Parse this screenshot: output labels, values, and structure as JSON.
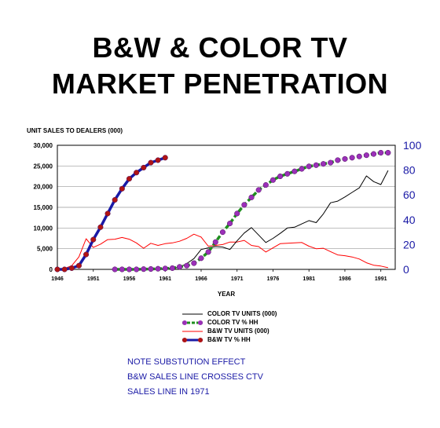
{
  "title_line1": "B&W & COLOR TV",
  "title_line2": "MARKET PENETRATION",
  "colors": {
    "color_units": "#000000",
    "color_pct_line": "#1f8f1f",
    "color_pct_marker": "#9b30b8",
    "bw_units": "#ff0000",
    "bw_pct_line": "#1a1aa6",
    "bw_pct_marker": "#b01414",
    "right_axis": "#1a1aa6",
    "note": "#1a1aa6"
  },
  "chart_data": {
    "type": "line",
    "ylabel": "UNIT SALES TO DEALERS (000)",
    "xlabel": "YEAR",
    "xlim": [
      1946,
      1993
    ],
    "ylim": [
      0,
      30000
    ],
    "y2lim": [
      0,
      100
    ],
    "grid": "horizontal",
    "x_ticks": [
      "1946",
      "1951",
      "1956",
      "1961",
      "1966",
      "1971",
      "1976",
      "1981",
      "1986",
      "1991"
    ],
    "y_ticks": [
      "0",
      "5,000",
      "10,000",
      "15,000",
      "20,000",
      "25,000",
      "30,000"
    ],
    "y2_ticks": [
      "0",
      "20",
      "40",
      "60",
      "80",
      "100"
    ],
    "legend_position": "below",
    "series": [
      {
        "name": "COLOR TV UNITS (000)",
        "axis": "left",
        "style": "line",
        "x": [
          1954,
          1955,
          1956,
          1957,
          1958,
          1959,
          1960,
          1961,
          1962,
          1963,
          1964,
          1965,
          1966,
          1967,
          1968,
          1969,
          1970,
          1971,
          1972,
          1973,
          1974,
          1975,
          1976,
          1977,
          1978,
          1979,
          1980,
          1981,
          1982,
          1983,
          1984,
          1985,
          1986,
          1987,
          1988,
          1989,
          1990,
          1991,
          1992
        ],
        "y": [
          5,
          20,
          100,
          80,
          150,
          100,
          120,
          150,
          300,
          500,
          1400,
          2600,
          4800,
          5200,
          5500,
          5400,
          4800,
          6900,
          8800,
          10100,
          8300,
          6500,
          7500,
          8700,
          10000,
          10200,
          11000,
          11800,
          11300,
          13400,
          16100,
          16500,
          17500,
          18600,
          19700,
          22600,
          21200,
          20500,
          23900
        ]
      },
      {
        "name": "COLOR TV % HH",
        "axis": "right",
        "style": "line-markers",
        "x": [
          1954,
          1955,
          1956,
          1957,
          1958,
          1959,
          1960,
          1961,
          1962,
          1963,
          1964,
          1965,
          1966,
          1967,
          1968,
          1969,
          1970,
          1971,
          1972,
          1973,
          1974,
          1975,
          1976,
          1977,
          1978,
          1979,
          1980,
          1981,
          1982,
          1983,
          1984,
          1985,
          1986,
          1987,
          1988,
          1989,
          1990,
          1991,
          1992
        ],
        "y": [
          0,
          0,
          0,
          0,
          0.2,
          0.3,
          0.5,
          0.7,
          1,
          2,
          3,
          5,
          9,
          14,
          22,
          30,
          37,
          45,
          52,
          58,
          64,
          68,
          72,
          75,
          77,
          79,
          81,
          83,
          84,
          85,
          86,
          88,
          89,
          90,
          91,
          92,
          93,
          94,
          94
        ]
      },
      {
        "name": "B&W TV UNITS (000)",
        "axis": "left",
        "style": "line",
        "x": [
          1946,
          1947,
          1948,
          1949,
          1950,
          1951,
          1952,
          1953,
          1954,
          1955,
          1956,
          1957,
          1958,
          1959,
          1960,
          1961,
          1962,
          1963,
          1964,
          1965,
          1966,
          1967,
          1968,
          1969,
          1970,
          1971,
          1972,
          1973,
          1974,
          1975,
          1976,
          1977,
          1978,
          1979,
          1980,
          1981,
          1982,
          1983,
          1984,
          1985,
          1986,
          1987,
          1988,
          1989,
          1990,
          1991,
          1992
        ],
        "y": [
          0,
          200,
          900,
          3000,
          7400,
          5300,
          6100,
          7200,
          7300,
          7700,
          7300,
          6400,
          5100,
          6300,
          5800,
          6200,
          6400,
          6800,
          7500,
          8500,
          7800,
          5600,
          5800,
          6000,
          6600,
          6600,
          7000,
          5800,
          5500,
          4200,
          5200,
          6200,
          6300,
          6400,
          6500,
          5600,
          5000,
          5100,
          4300,
          3500,
          3300,
          3000,
          2500,
          1600,
          1000,
          800,
          400
        ]
      },
      {
        "name": "B&W TV % HH",
        "axis": "right",
        "style": "line-markers",
        "x": [
          1946,
          1947,
          1948,
          1949,
          1950,
          1951,
          1952,
          1953,
          1954,
          1955,
          1956,
          1957,
          1958,
          1959,
          1960,
          1961
        ],
        "y": [
          0,
          0,
          1,
          3,
          12,
          24,
          34,
          45,
          56,
          65,
          73,
          78,
          82,
          86,
          88,
          90
        ]
      }
    ]
  },
  "note": {
    "line1": "NOTE SUBSTUTION EFFECT",
    "line2": "B&W SALES LINE CROSSES CTV",
    "line3": "SALES LINE IN 1971"
  }
}
